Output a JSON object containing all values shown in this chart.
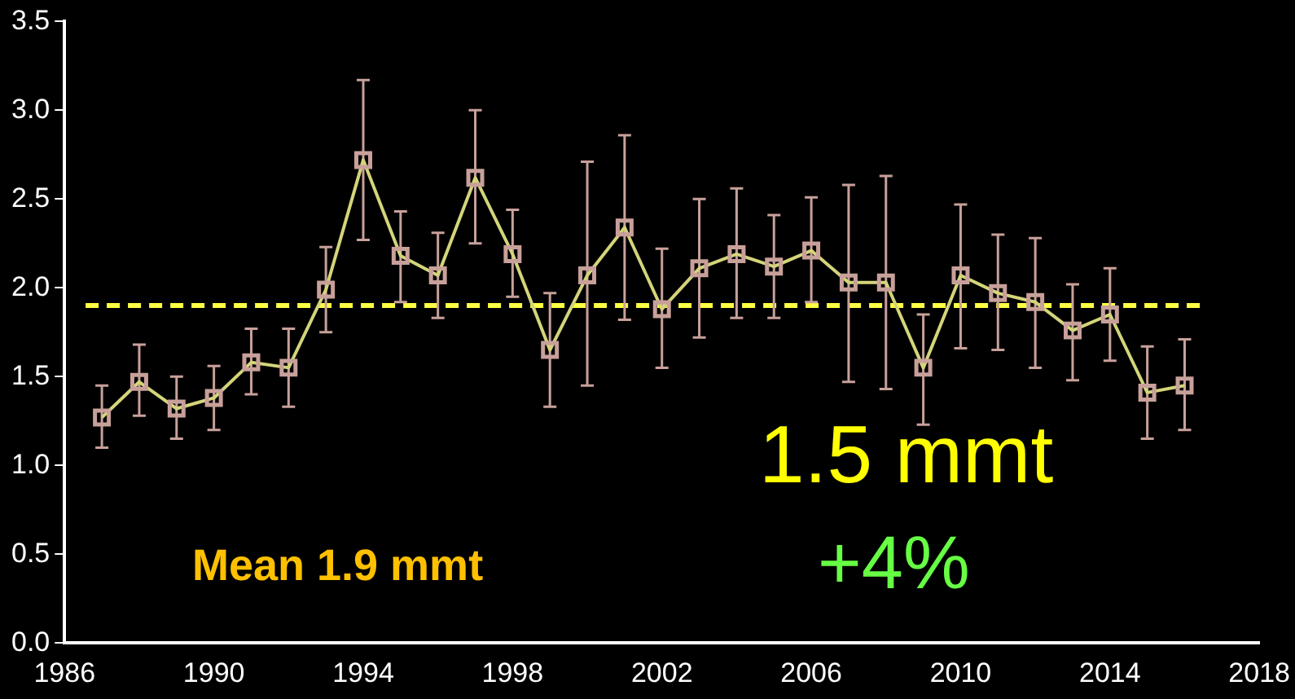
{
  "chart_data": {
    "type": "line",
    "x": [
      1987,
      1988,
      1989,
      1990,
      1991,
      1992,
      1993,
      1994,
      1995,
      1996,
      1997,
      1998,
      1999,
      2000,
      2001,
      2002,
      2003,
      2004,
      2005,
      2006,
      2007,
      2008,
      2009,
      2010,
      2011,
      2012,
      2013,
      2014,
      2015,
      2016
    ],
    "series": [
      {
        "color": "#d4d47a",
        "values": [
          1.27,
          1.47,
          1.32,
          1.38,
          1.58,
          1.55,
          1.99,
          2.72,
          2.18,
          2.07,
          2.62,
          2.19,
          1.65,
          2.07,
          2.34,
          1.88,
          2.11,
          2.19,
          2.12,
          2.21,
          2.03,
          2.03,
          1.55,
          2.07,
          1.97,
          1.92,
          1.76,
          1.85,
          1.41,
          1.45
        ],
        "errors": [
          [
            1.1,
            1.45
          ],
          [
            1.28,
            1.68
          ],
          [
            1.15,
            1.5
          ],
          [
            1.2,
            1.56
          ],
          [
            1.4,
            1.77
          ],
          [
            1.33,
            1.77
          ],
          [
            1.75,
            2.23
          ],
          [
            2.27,
            3.17
          ],
          [
            1.92,
            2.43
          ],
          [
            1.83,
            2.31
          ],
          [
            2.25,
            3.0
          ],
          [
            1.95,
            2.44
          ],
          [
            1.33,
            1.97
          ],
          [
            1.45,
            2.71
          ],
          [
            1.82,
            2.86
          ],
          [
            1.55,
            2.22
          ],
          [
            1.72,
            2.5
          ],
          [
            1.83,
            2.56
          ],
          [
            1.83,
            2.41
          ],
          [
            1.92,
            2.51
          ],
          [
            1.47,
            2.58
          ],
          [
            1.43,
            2.63
          ],
          [
            1.23,
            1.85
          ],
          [
            1.66,
            2.47
          ],
          [
            1.65,
            2.3
          ],
          [
            1.55,
            2.28
          ],
          [
            1.48,
            2.02
          ],
          [
            1.59,
            2.11
          ],
          [
            1.15,
            1.67
          ],
          [
            1.2,
            1.71
          ]
        ]
      }
    ],
    "marker": "square",
    "xlim": [
      1986,
      2018
    ],
    "xticks": [
      1986,
      1990,
      1994,
      1998,
      2002,
      2006,
      2010,
      2014,
      2018
    ],
    "ylim": [
      0,
      3.5
    ],
    "yticks": [
      {
        "value": 0,
        "label": "0.0"
      },
      {
        "value": 0.5,
        "label": "0.5"
      },
      {
        "value": 1,
        "label": "1.0"
      },
      {
        "value": 1.5,
        "label": "1.5"
      },
      {
        "value": 2,
        "label": "2.0"
      },
      {
        "value": 2.5,
        "label": "2.5"
      },
      {
        "value": 3,
        "label": "3.0"
      },
      {
        "value": 3.5,
        "label": "3.5"
      }
    ],
    "ref_lines": [
      {
        "axis": "y",
        "value": 1.9,
        "color": "#ffff44",
        "line_style": "dashed"
      }
    ],
    "annotations": [
      "Mean 1.9 mmt",
      "1.5 mmt",
      "+4%"
    ],
    "grid": false,
    "legend": false
  }
}
